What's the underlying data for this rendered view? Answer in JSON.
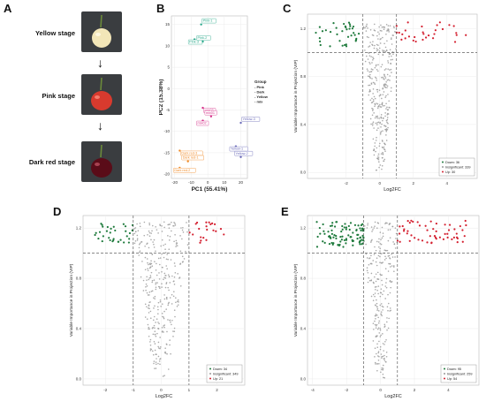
{
  "panels": {
    "A": "A",
    "B": "B",
    "C": "C",
    "D": "D",
    "E": "E"
  },
  "panel_a": {
    "stages": [
      "Yellow stage",
      "Pink stage",
      "Dark red stage"
    ],
    "arrow": "↓",
    "colors": {
      "yellow": "#f2e6b8",
      "pink": "#d83a2e",
      "dark": "#5a0c18",
      "bg": "#3a3d40",
      "stem": "#6b8a3a"
    }
  },
  "colors": {
    "down": "#1e7a3c",
    "up": "#d42030",
    "insig": "#9a9a9a",
    "pink_group": "#d6328a",
    "dark_group": "#f08c2a",
    "yellow_group": "#6a6ab8",
    "mix_group": "#29a88a"
  },
  "chart_data": [
    {
      "panel": "B",
      "type": "scatter",
      "xlabel": "PC1 (55.41%)",
      "ylabel": "PC2 (15.38%)",
      "xlim": [
        -22,
        24
      ],
      "ylim": [
        -21,
        17
      ],
      "xticks": [
        "-20",
        "-10",
        "0",
        "10",
        "20"
      ],
      "xtick_values": [
        -20,
        -10,
        0,
        10,
        20
      ],
      "yticks": [
        "15",
        "10",
        "5",
        "0",
        "-5",
        "-10",
        "-15",
        "-20"
      ],
      "ytick_values": [
        15,
        10,
        5,
        0,
        -5,
        -10,
        -15,
        -20
      ],
      "legend_title": "Group",
      "legend": [
        "Pink",
        "Dark",
        "Yellow",
        "mix"
      ],
      "points": [
        {
          "label": "Pink-1",
          "x": -4,
          "y": 15,
          "group": "mix"
        },
        {
          "label": "Pink-3",
          "x": -8,
          "y": 11.5,
          "group": "mix"
        },
        {
          "label": "Pink-2",
          "x": -3,
          "y": 11,
          "group": "mix"
        },
        {
          "label": "mix03",
          "x": -3,
          "y": -4.5,
          "group": "pink"
        },
        {
          "label": "mix01",
          "x": 2,
          "y": -6.5,
          "group": "pink"
        },
        {
          "label": "mix02",
          "x": -3,
          "y": -7.5,
          "group": "pink"
        },
        {
          "label": "Yellow-3",
          "x": 20,
          "y": -8,
          "group": "yellow"
        },
        {
          "label": "Yellow-1",
          "x": 17,
          "y": -13.5,
          "group": "yellow"
        },
        {
          "label": "Yellow-2",
          "x": 20,
          "y": -16,
          "group": "yellow"
        },
        {
          "label": "Dark red-3",
          "x": -17,
          "y": -14.5,
          "group": "dark"
        },
        {
          "label": "Dark red-1",
          "x": -12,
          "y": -17,
          "group": "dark"
        },
        {
          "label": "Dark red-2",
          "x": -17,
          "y": -18.5,
          "group": "dark"
        }
      ]
    },
    {
      "panel": "C",
      "type": "scatter",
      "xlabel": "Log2FC",
      "ylabel": "Variable Importance in Projection (VIP)",
      "xlim": [
        -4.3,
        5.8
      ],
      "ylim": [
        -0.05,
        1.32
      ],
      "xticks": [
        "-2",
        "0",
        "2",
        "4"
      ],
      "xtick_values": [
        -2,
        0,
        2,
        4
      ],
      "yticks": [
        "0.0",
        "0.4",
        "0.8",
        "1.2"
      ],
      "ytick_values": [
        0,
        0.4,
        0.8,
        1.2
      ],
      "vlines": [
        -1,
        1
      ],
      "hline": 1,
      "legend": [
        {
          "key": "down",
          "label": "Down: 36"
        },
        {
          "key": "insig",
          "label": "Insignificant: 339"
        },
        {
          "key": "up",
          "label": "Up: 30"
        }
      ],
      "counts": {
        "down": 36,
        "insig": 339,
        "up": 30
      }
    },
    {
      "panel": "D",
      "type": "scatter",
      "xlabel": "Log2FC",
      "ylabel": "Variable Importance in Projection (VIP)",
      "xlim": [
        -2.8,
        3.0
      ],
      "ylim": [
        -0.05,
        1.3
      ],
      "xticks": [
        "-2",
        "-1",
        "0",
        "1",
        "2"
      ],
      "xtick_values": [
        -2,
        -1,
        0,
        1,
        2
      ],
      "yticks": [
        "0.0",
        "0.4",
        "0.8",
        "1.2"
      ],
      "ytick_values": [
        0,
        0.4,
        0.8,
        1.2
      ],
      "vlines": [
        -1,
        1
      ],
      "hline": 1,
      "legend": [
        {
          "key": "down",
          "label": "Down: 34"
        },
        {
          "key": "insig",
          "label": "Insignificant: 349"
        },
        {
          "key": "up",
          "label": "Up: 21"
        }
      ],
      "counts": {
        "down": 34,
        "insig": 349,
        "up": 21
      }
    },
    {
      "panel": "E",
      "type": "scatter",
      "xlabel": "Log2FC",
      "ylabel": "Variable Importance in Projection (VIP)",
      "xlim": [
        -4.3,
        5.8
      ],
      "ylim": [
        -0.05,
        1.3
      ],
      "xticks": [
        "-4",
        "-2",
        "0",
        "2",
        "4"
      ],
      "xtick_values": [
        -4,
        -2,
        0,
        2,
        4
      ],
      "yticks": [
        "0.0",
        "0.4",
        "0.8",
        "1.2"
      ],
      "ytick_values": [
        0,
        0.4,
        0.8,
        1.2
      ],
      "vlines": [
        -1,
        1
      ],
      "hline": 1,
      "legend": [
        {
          "key": "down",
          "label": "Down: 95"
        },
        {
          "key": "insig",
          "label": "Insignificant: 259"
        },
        {
          "key": "up",
          "label": "Up: 54"
        }
      ],
      "counts": {
        "down": 95,
        "insig": 259,
        "up": 54
      }
    }
  ]
}
